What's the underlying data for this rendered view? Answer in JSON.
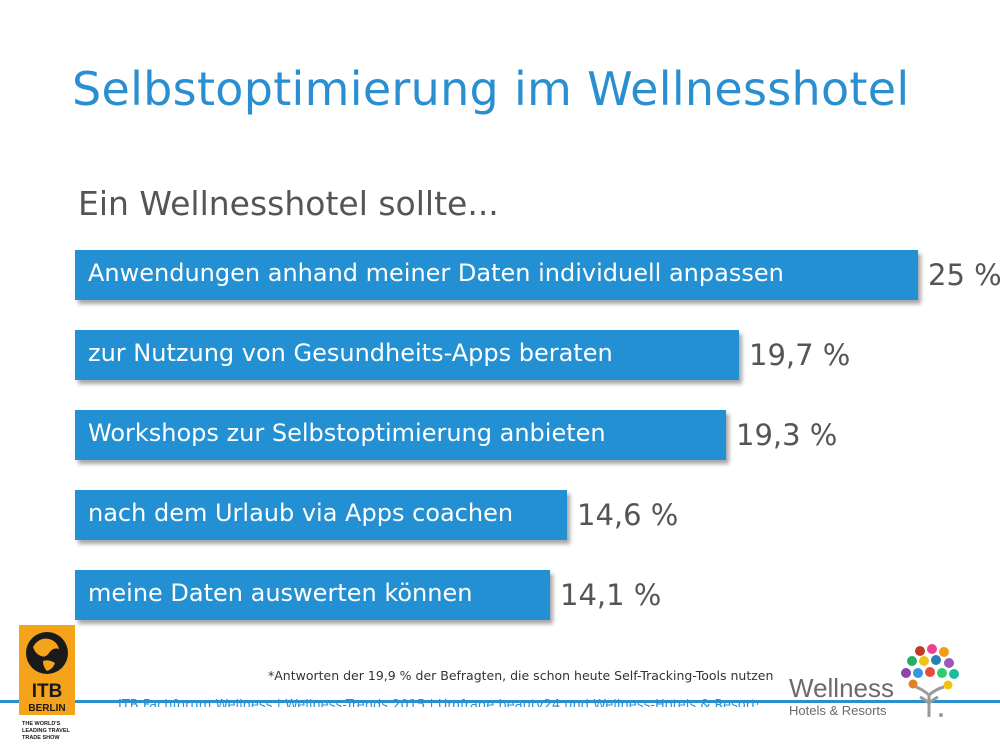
{
  "title": "Selbstoptimierung im Wellnesshotel",
  "subtitle": "Ein Wellnesshotel sollte...",
  "chart_data": {
    "type": "bar",
    "orientation": "horizontal",
    "categories": [
      "Anwendungen anhand meiner Daten individuell anpassen",
      "zur Nutzung von Gesundheits-Apps beraten",
      "Workshops zur Selbstoptimierung anbieten",
      "nach dem Urlaub via Apps coachen",
      "meine Daten auswerten können"
    ],
    "values": [
      25,
      19.7,
      19.3,
      14.6,
      14.1
    ],
    "value_labels": [
      "25 %",
      "19,7 %",
      "19,3 %",
      "14,6 %",
      "14,1 %"
    ],
    "unit": "%",
    "bar_color": "#2290d2",
    "title": "Ein Wellnesshotel sollte...",
    "grid": false,
    "legend": "none"
  },
  "footnote": "*Antworten der 19,9 % der Befragten, die schon heute Self-Tracking-Tools nutzen",
  "footer": "ITB Fachforum Wellness | Wellness-Trends 2015 | Umfrage beauty24 und Wellness-Hotels & Resorts",
  "logos": {
    "itb": {
      "line1": "ITB",
      "line2": "BERLIN",
      "tagline1": "THE WORLD'S",
      "tagline2": "LEADING TRAVEL",
      "tagline3": "TRADE SHOW"
    },
    "wellness": {
      "word": "Wellness",
      "sub": "Hotels & Resorts"
    }
  },
  "colors": {
    "accent": "#2a8fd0",
    "bar": "#2290d2",
    "text_gray": "#555555",
    "itb_orange": "#f5a31a"
  }
}
